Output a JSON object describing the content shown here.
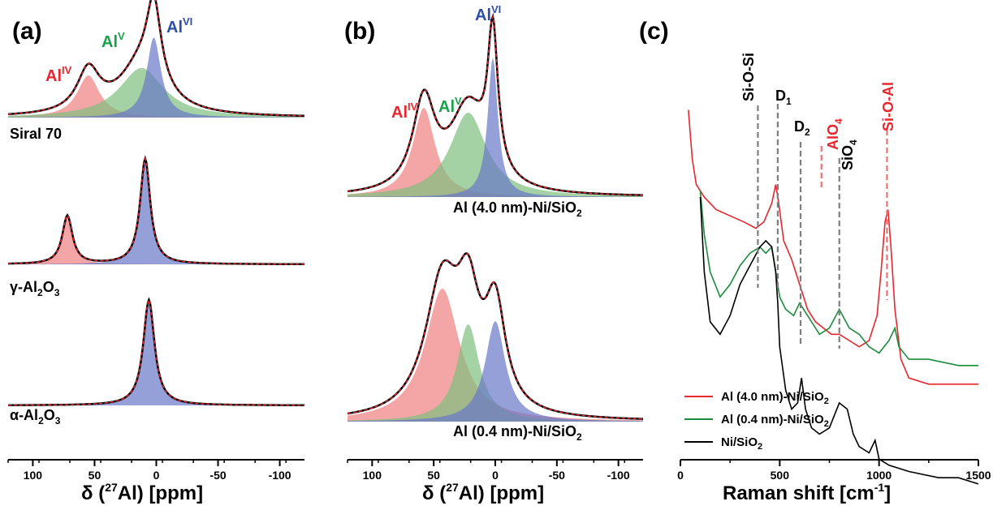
{
  "chart_data": [
    {
      "panel": "(a)",
      "type": "line",
      "xlabel": "δ (27Al) [ppm]",
      "xlim": [
        120,
        -120
      ],
      "x_reversed": true,
      "xticks": [
        100,
        50,
        0,
        -50,
        -100
      ],
      "traces": [
        {
          "name": "Siral 70",
          "components": [
            {
              "label": "AlIV",
              "color": "#f08080",
              "center": 55,
              "height": 0.4,
              "width": 11
            },
            {
              "label": "AlV",
              "color": "#7fbf7f",
              "center": 12,
              "height": 0.47,
              "width": 22
            },
            {
              "label": "AlVI",
              "color": "#6878c8",
              "center": 2,
              "height": 0.76,
              "width": 7
            }
          ]
        },
        {
          "name": "γ-Al2O3",
          "components": [
            {
              "label": "AlIV",
              "color": "#f08080",
              "center": 72,
              "height": 0.46,
              "width": 5
            },
            {
              "label": "AlVI",
              "color": "#6878c8",
              "center": 9,
              "height": 1.0,
              "width": 5
            }
          ]
        },
        {
          "name": "α-Al2O3",
          "components": [
            {
              "label": "AlVI",
              "color": "#6878c8",
              "center": 6,
              "height": 1.0,
              "width": 5.5
            }
          ]
        }
      ],
      "annotations": [
        {
          "text": "Al",
          "sup": "IV",
          "color": "#e8262d"
        },
        {
          "text": "Al",
          "sup": "V",
          "color": "#1aa24a"
        },
        {
          "text": "Al",
          "sup": "VI",
          "color": "#2f4ea8"
        }
      ]
    },
    {
      "panel": "(b)",
      "type": "line",
      "xlabel": "δ (27Al) [ppm]",
      "xlim": [
        120,
        -120
      ],
      "x_reversed": true,
      "xticks": [
        100,
        50,
        0,
        -50,
        -100
      ],
      "traces": [
        {
          "name": "Al (4.0 nm)-Ni/SiO2",
          "components": [
            {
              "label": "AlIV",
              "color": "#f08080",
              "center": 58,
              "height": 0.55,
              "width": 11
            },
            {
              "label": "AlV",
              "color": "#7fbf7f",
              "center": 22,
              "height": 0.52,
              "width": 18
            },
            {
              "label": "AlVI",
              "color": "#6878c8",
              "center": 2,
              "height": 0.86,
              "width": 5
            }
          ]
        },
        {
          "name": "Al (0.4 nm)-Ni/SiO2",
          "components": [
            {
              "label": "AlIV",
              "color": "#f08080",
              "center": 43,
              "height": 0.82,
              "width": 17
            },
            {
              "label": "AlV",
              "color": "#7fbf7f",
              "center": 22,
              "height": 0.6,
              "width": 11
            },
            {
              "label": "AlVI",
              "color": "#6878c8",
              "center": 0,
              "height": 0.62,
              "width": 10
            }
          ]
        }
      ],
      "annotations": [
        {
          "text": "Al",
          "sup": "IV",
          "color": "#e8262d"
        },
        {
          "text": "Al",
          "sup": "V",
          "color": "#1aa24a"
        },
        {
          "text": "Al",
          "sup": "VI",
          "color": "#2f4ea8"
        }
      ]
    },
    {
      "panel": "(c)",
      "type": "line",
      "xlabel": "Raman shift [cm-1]",
      "xlim": [
        0,
        1500
      ],
      "xticks": [
        0,
        500,
        1000,
        1500
      ],
      "series": [
        {
          "name": "Al (4.0 nm)-Ni/SiO2",
          "color": "#e8262d",
          "x": [
            40,
            60,
            80,
            120,
            180,
            250,
            320,
            380,
            420,
            460,
            480,
            495,
            520,
            560,
            600,
            640,
            680,
            720,
            760,
            800,
            850,
            900,
            950,
            990,
            1010,
            1030,
            1045,
            1060,
            1080,
            1110,
            1150,
            1250,
            1400,
            1500
          ],
          "y": [
            0.88,
            0.8,
            0.76,
            0.74,
            0.72,
            0.71,
            0.7,
            0.69,
            0.7,
            0.73,
            0.76,
            0.73,
            0.67,
            0.64,
            0.6,
            0.56,
            0.54,
            0.53,
            0.52,
            0.52,
            0.51,
            0.5,
            0.51,
            0.55,
            0.62,
            0.7,
            0.72,
            0.66,
            0.56,
            0.48,
            0.45,
            0.44,
            0.44,
            0.44
          ]
        },
        {
          "name": "Al (0.4 nm)-Ni/SiO2",
          "color": "#1a8c3c",
          "x": [
            100,
            120,
            150,
            200,
            250,
            300,
            350,
            400,
            430,
            460,
            480,
            500,
            530,
            570,
            600,
            640,
            700,
            750,
            800,
            850,
            900,
            950,
            1000,
            1050,
            1080,
            1100,
            1150,
            1250,
            1400,
            1500
          ],
          "y": [
            0.75,
            0.68,
            0.62,
            0.58,
            0.6,
            0.63,
            0.65,
            0.66,
            0.65,
            0.66,
            0.62,
            0.58,
            0.56,
            0.55,
            0.57,
            0.55,
            0.52,
            0.53,
            0.56,
            0.53,
            0.52,
            0.5,
            0.49,
            0.51,
            0.53,
            0.5,
            0.48,
            0.48,
            0.47,
            0.47
          ]
        },
        {
          "name": "Ni/SiO2",
          "color": "#000000",
          "x": [
            100,
            120,
            150,
            200,
            250,
            300,
            350,
            400,
            430,
            460,
            480,
            490,
            500,
            530,
            560,
            590,
            610,
            630,
            660,
            700,
            750,
            800,
            840,
            870,
            900,
            950,
            980,
            1000,
            1050,
            1150,
            1300,
            1400,
            1500
          ],
          "y": [
            0.74,
            0.62,
            0.54,
            0.52,
            0.55,
            0.6,
            0.63,
            0.66,
            0.67,
            0.66,
            0.62,
            0.57,
            0.5,
            0.43,
            0.4,
            0.41,
            0.45,
            0.4,
            0.37,
            0.36,
            0.37,
            0.41,
            0.4,
            0.36,
            0.34,
            0.33,
            0.35,
            0.32,
            0.31,
            0.3,
            0.29,
            0.29,
            0.28
          ]
        }
      ],
      "vlines": [
        {
          "x": 390,
          "label": "Si-O-Si",
          "color": "#7f7f7f"
        },
        {
          "x": 490,
          "label": "D1",
          "color": "#7f7f7f"
        },
        {
          "x": 605,
          "label": "D2",
          "color": "#7f7f7f"
        },
        {
          "x": 710,
          "label": "AlO4",
          "color": "#f07070"
        },
        {
          "x": 800,
          "label": "SiO4",
          "color": "#7f7f7f"
        },
        {
          "x": 1040,
          "label": "Si-O-Al",
          "color": "#f07070"
        }
      ]
    }
  ],
  "labels": {
    "panel_a": "(a)",
    "panel_b": "(b)",
    "panel_c": "(c)",
    "xlabel_nmr_prefix": "δ (",
    "xlabel_nmr_sup": "27",
    "xlabel_nmr_suffix": "Al) [ppm]",
    "xlabel_raman": "Raman shift [cm",
    "xlabel_raman_sup": "-1",
    "xlabel_raman_end": "]",
    "sample_siral": "Siral 70",
    "sample_gamma_pre": "γ-Al",
    "sample_gamma_sub1": "2",
    "sample_gamma_mid": "O",
    "sample_gamma_sub2": "3",
    "sample_alpha_pre": "α-Al",
    "sample_alpha_sub1": "2",
    "sample_alpha_mid": "O",
    "sample_alpha_sub2": "3",
    "sample_b1_pre": "Al (4.0 nm)-Ni/SiO",
    "sample_b1_sub": "2",
    "sample_b2_pre": "Al (0.4 nm)-Ni/SiO",
    "sample_b2_sub": "2",
    "al": "Al",
    "sup_iv": "IV",
    "sup_v": "V",
    "sup_vi": "VI",
    "raman_sioisi": "Si-O-Si",
    "raman_d": "D",
    "raman_d1_sub": "1",
    "raman_d2_sub": "2",
    "raman_alo": "AlO",
    "raman_alo_sub": "4",
    "raman_sio": "SiO",
    "raman_sio_sub": "4",
    "raman_sioal": "Si-O-Al",
    "legend1_pre": "Al (4.0 nm)-Ni/SiO",
    "legend1_sub": "2",
    "legend2_pre": "Al (0.4 nm)-Ni/SiO",
    "legend2_sub": "2",
    "legend3_pre": "Ni/SiO",
    "legend3_sub": "2"
  },
  "colors": {
    "red": "#e8262d",
    "green": "#1aa24a",
    "blue": "#2f4ea8",
    "envelope": "#000000",
    "fit": "#e8262d"
  }
}
